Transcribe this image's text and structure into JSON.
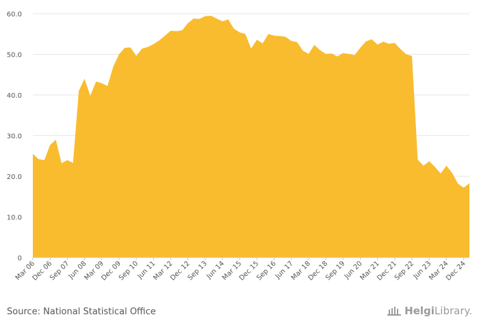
{
  "chart_data": {
    "type": "area",
    "y_ticks": [
      "0",
      "10.0",
      "20.0",
      "30.0",
      "40.0",
      "50.0",
      "60.0"
    ],
    "ylim": [
      0,
      60
    ],
    "x_tick_labels": [
      "Mar 06",
      "Dec 06",
      "Sep 07",
      "Jun 08",
      "Mar 09",
      "Dec 09",
      "Sep 10",
      "Jun 11",
      "Mar 12",
      "Dec 12",
      "Sep 13",
      "Jun 14",
      "Mar 15",
      "Dec 15",
      "Sep 16",
      "Jun 17",
      "Mar 18",
      "Dec 18",
      "Sep 19",
      "Jun 20",
      "Mar 21",
      "Dec 21",
      "Sep 22",
      "Jun 23",
      "Mar 24",
      "Dec 24"
    ],
    "x": [
      "Mar 06",
      "Jun 06",
      "Sep 06",
      "Dec 06",
      "Mar 07",
      "Jun 07",
      "Sep 07",
      "Dec 07",
      "Mar 08",
      "Jun 08",
      "Sep 08",
      "Dec 08",
      "Mar 09",
      "Jun 09",
      "Sep 09",
      "Dec 09",
      "Mar 10",
      "Jun 10",
      "Sep 10",
      "Dec 10",
      "Mar 11",
      "Jun 11",
      "Sep 11",
      "Dec 11",
      "Mar 12",
      "Jun 12",
      "Sep 12",
      "Dec 12",
      "Mar 13",
      "Jun 13",
      "Sep 13",
      "Dec 13",
      "Mar 14",
      "Jun 14",
      "Sep 14",
      "Dec 14",
      "Mar 15",
      "Jun 15",
      "Sep 15",
      "Dec 15",
      "Mar 16",
      "Jun 16",
      "Sep 16",
      "Dec 16",
      "Mar 17",
      "Jun 17",
      "Sep 17",
      "Dec 17",
      "Mar 18",
      "Jun 18",
      "Sep 18",
      "Dec 18",
      "Mar 19",
      "Jun 19",
      "Sep 19",
      "Dec 19",
      "Mar 20",
      "Jun 20",
      "Sep 20",
      "Dec 20",
      "Mar 21",
      "Jun 21",
      "Sep 21",
      "Dec 21",
      "Mar 22",
      "Jun 22",
      "Sep 22",
      "Dec 22",
      "Mar 23",
      "Jun 23",
      "Sep 23",
      "Dec 23",
      "Mar 24",
      "Jun 24",
      "Sep 24",
      "Dec 24",
      "Mar 25"
    ],
    "series": [
      {
        "values": [
          25.5,
          24.2,
          24.0,
          27.7,
          29.0,
          23.2,
          24.0,
          23.3,
          41.0,
          44.0,
          39.8,
          43.3,
          42.9,
          42.2,
          47.0,
          50.0,
          51.6,
          51.7,
          49.6,
          51.4,
          51.8,
          52.5,
          53.4,
          54.6,
          55.8,
          55.7,
          55.9,
          57.7,
          58.8,
          58.7,
          59.4,
          59.5,
          58.8,
          58.1,
          58.6,
          56.3,
          55.4,
          55.0,
          51.4,
          53.6,
          52.7,
          55.0,
          54.6,
          54.5,
          54.3,
          53.3,
          53.0,
          50.9,
          50.1,
          52.3,
          51.0,
          50.1,
          50.2,
          49.5,
          50.3,
          50.1,
          49.8,
          51.6,
          53.2,
          53.7,
          52.4,
          53.1,
          52.6,
          52.8,
          51.3,
          50.0,
          49.6,
          24.1,
          22.6,
          23.7,
          22.3,
          20.7,
          22.6,
          20.8,
          18.2,
          17.2,
          18.3
        ]
      }
    ],
    "colors": {
      "area": "#F9BC2E"
    },
    "grid": "horizontal"
  },
  "footer": {
    "source": "Source: National Statistical Office",
    "logo_text_bold": "Helgi",
    "logo_text_normal": "Library."
  }
}
